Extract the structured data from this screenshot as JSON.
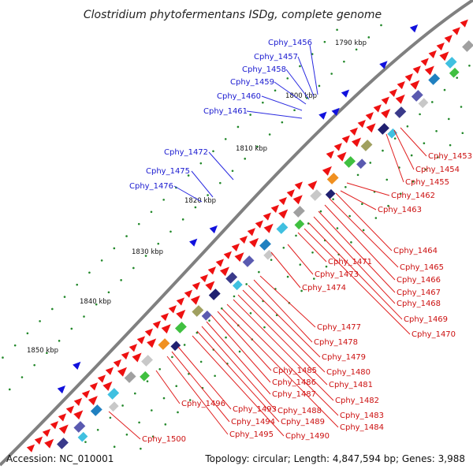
{
  "title": "Clostridium phytofermentans ISDg, complete genome",
  "footer": {
    "accession": "Accession: NC_010001",
    "summary": "Topology: circular; Length: 4,847,594 bp; Genes: 3,988"
  },
  "kbp_labels": [
    "1790 kbp",
    "1800 kbp",
    "1810 kbp",
    "1820 kbp",
    "1830 kbp",
    "1840 kbp",
    "1850 kbp"
  ],
  "blue_labels": [
    "Cphy_1456",
    "Cphy_1457",
    "Cphy_1458",
    "Cphy_1459",
    "Cphy_1460",
    "Cphy_1461",
    "Cphy_1472",
    "Cphy_1475",
    "Cphy_1476"
  ],
  "red_labels": [
    "Cphy_1453",
    "Cphy_1454",
    "Cphy_1455",
    "Cphy_1462",
    "Cphy_1463",
    "Cphy_1464",
    "Cphy_1465",
    "Cphy_1466",
    "Cphy_1467",
    "Cphy_1468",
    "Cphy_1469",
    "Cphy_1470",
    "Cphy_1471",
    "Cphy_1473",
    "Cphy_1474",
    "Cphy_1477",
    "Cphy_1478",
    "Cphy_1479",
    "Cphy_1480",
    "Cphy_1481",
    "Cphy_1482",
    "Cphy_1483",
    "Cphy_1484",
    "Cphy_1485",
    "Cphy_1486",
    "Cphy_1487",
    "Cphy_1488",
    "Cphy_1489",
    "Cphy_1490",
    "Cphy_1493",
    "Cphy_1494",
    "Cphy_1495",
    "Cphy_1496",
    "Cphy_1500"
  ],
  "colors": {
    "backbone": "#808080",
    "forward_cds": "#ee1111",
    "reverse_cds": "#1111dd",
    "label_blue": "#1a1ad0",
    "label_red": "#cc1010",
    "tick": "#22882a"
  }
}
